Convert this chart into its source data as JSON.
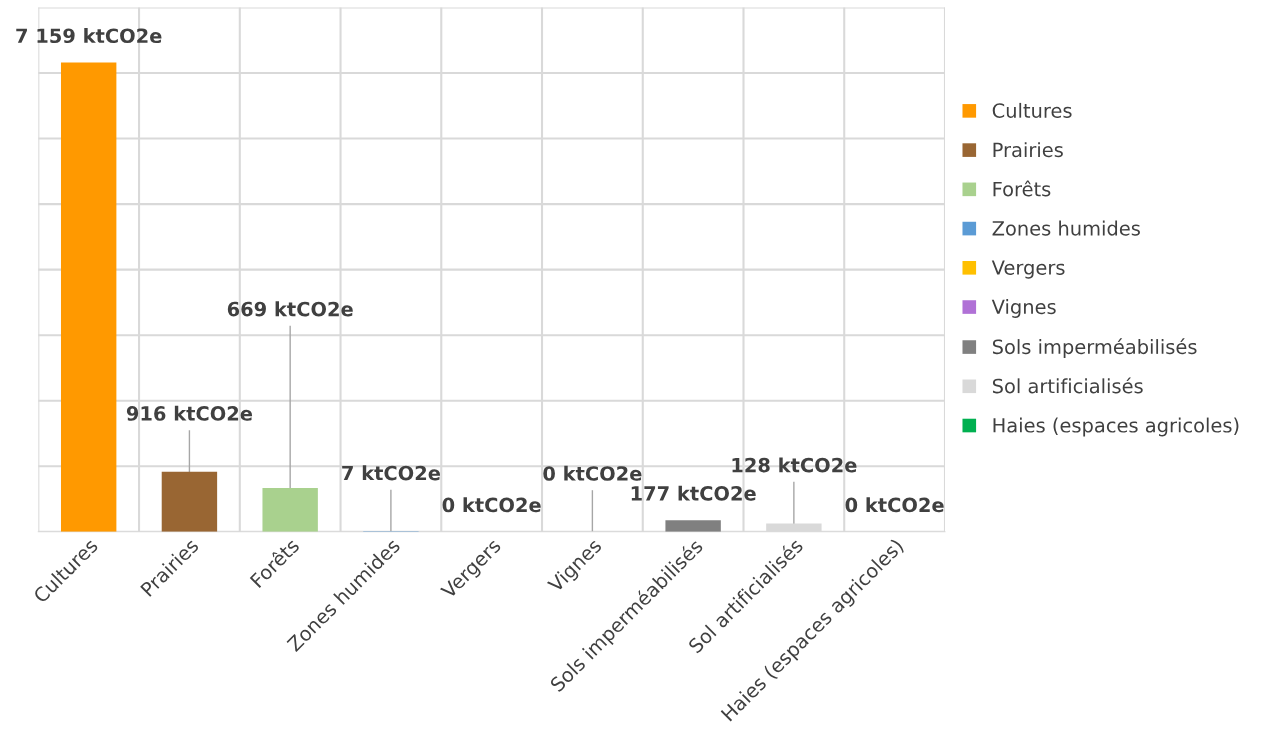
{
  "chart_data": {
    "type": "bar",
    "categories": [
      "Cultures",
      "Prairies",
      "Forêts",
      "Zones humides",
      "Vergers",
      "Vignes",
      "Sols imperméabilisés",
      "Sol artificialisés",
      "Haies (espaces agricoles)"
    ],
    "series": [
      {
        "name": "Cultures",
        "color": "#ff9900",
        "values": [
          7159,
          null,
          null,
          null,
          null,
          null,
          null,
          null,
          null
        ],
        "value_labels": [
          "7 159 ktCO2e",
          null,
          null,
          null,
          null,
          null,
          null,
          null,
          null
        ]
      },
      {
        "name": "Prairies",
        "color": "#996633",
        "values": [
          null,
          916,
          null,
          null,
          null,
          null,
          null,
          null,
          null
        ],
        "value_labels": [
          null,
          "916 ktCO2e",
          null,
          null,
          null,
          null,
          null,
          null,
          null
        ]
      },
      {
        "name": "Forêts",
        "color": "#a9d18e",
        "values": [
          null,
          null,
          669,
          null,
          null,
          null,
          null,
          null,
          null
        ],
        "value_labels": [
          null,
          null,
          "669 ktCO2e",
          null,
          null,
          null,
          null,
          null,
          null
        ]
      },
      {
        "name": "Zones humides",
        "color": "#5b9bd5",
        "values": [
          null,
          null,
          null,
          7,
          null,
          null,
          null,
          null,
          null
        ],
        "value_labels": [
          null,
          null,
          null,
          "7 ktCO2e",
          null,
          null,
          null,
          null,
          null
        ]
      },
      {
        "name": "Vergers",
        "color": "#ffc000",
        "values": [
          null,
          null,
          null,
          null,
          0,
          null,
          null,
          null,
          null
        ],
        "value_labels": [
          null,
          null,
          null,
          null,
          "0 ktCO2e",
          null,
          null,
          null,
          null
        ]
      },
      {
        "name": "Vignes",
        "color": "#b071d6",
        "values": [
          null,
          null,
          null,
          null,
          null,
          0,
          null,
          null,
          null
        ],
        "value_labels": [
          null,
          null,
          null,
          null,
          null,
          "0 ktCO2e",
          null,
          null,
          null
        ]
      },
      {
        "name": "Sols imperméabilisés",
        "color": "#808080",
        "values": [
          null,
          null,
          null,
          null,
          null,
          null,
          177,
          null,
          null
        ],
        "value_labels": [
          null,
          null,
          null,
          null,
          null,
          null,
          "177 ktCO2e",
          null,
          null
        ]
      },
      {
        "name": "Sol artificialisés",
        "color": "#d9d9d9",
        "values": [
          null,
          null,
          null,
          null,
          null,
          null,
          null,
          128,
          null
        ],
        "value_labels": [
          null,
          null,
          null,
          null,
          null,
          null,
          null,
          "128 ktCO2e",
          null
        ]
      },
      {
        "name": "Haies (espaces agricoles)",
        "color": "#00b050",
        "values": [
          null,
          null,
          null,
          null,
          null,
          null,
          null,
          null,
          0
        ],
        "value_labels": [
          null,
          null,
          null,
          null,
          null,
          null,
          null,
          null,
          "0 ktCO2e"
        ]
      }
    ],
    "ylim": [
      0,
      8000
    ],
    "yticks": [
      {
        "value": 0,
        "label": null
      },
      {
        "value": 1000,
        "label": null
      },
      {
        "value": 2000,
        "label": null
      },
      {
        "value": 3000,
        "label": null
      },
      {
        "value": 4000,
        "label": null
      },
      {
        "value": 5000,
        "label": null
      },
      {
        "value": 6000,
        "label": null
      },
      {
        "value": 7000,
        "label": null
      },
      {
        "value": 8000,
        "label": null
      }
    ],
    "tick_labels": "x",
    "grid": true,
    "legend": "right"
  }
}
